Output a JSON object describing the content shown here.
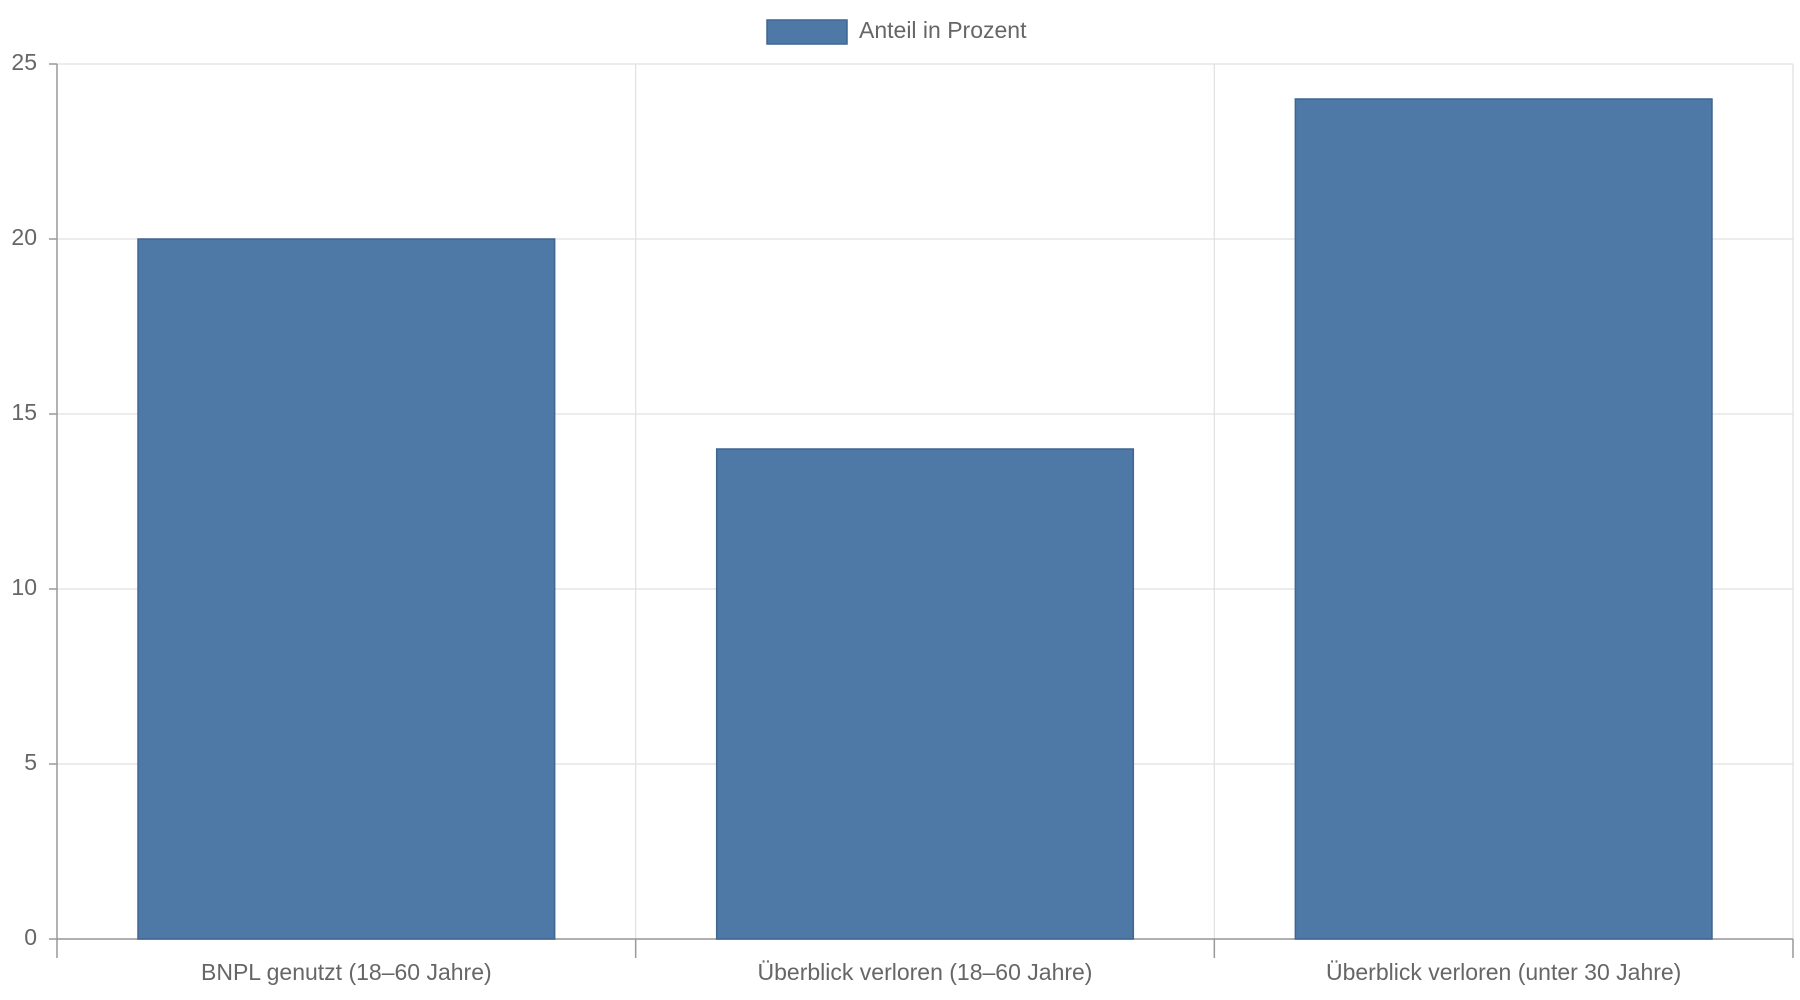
{
  "chart_data": {
    "type": "bar",
    "categories": [
      "BNPL genutzt (18–60 Jahre)",
      "Überblick verloren (18–60 Jahre)",
      "Überblick verloren (unter 30 Jahre)"
    ],
    "series": [
      {
        "name": "Anteil in Prozent",
        "color": "#4e79a7",
        "values": [
          20,
          14,
          24
        ]
      }
    ],
    "ylim": [
      0,
      25
    ],
    "yticks": [
      0,
      5,
      10,
      15,
      20,
      25
    ],
    "grid": true,
    "legend": "top"
  }
}
